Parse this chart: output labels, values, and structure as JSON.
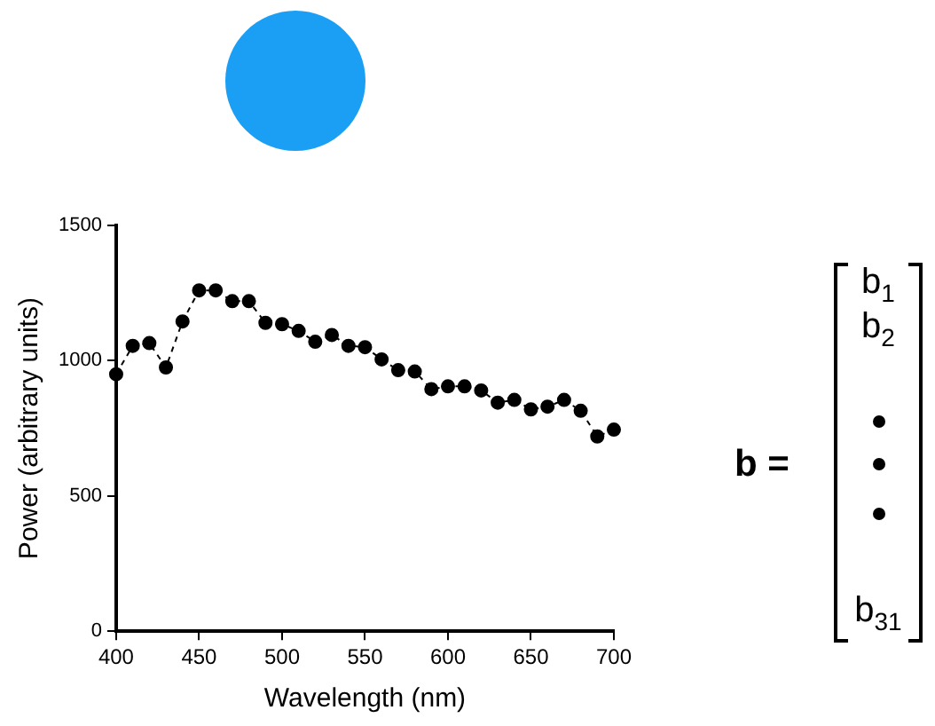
{
  "chart_data": {
    "type": "line",
    "xlabel": "Wavelength (nm)",
    "ylabel": "Power (arbitrary units)",
    "x": [
      400,
      410,
      420,
      430,
      440,
      450,
      460,
      470,
      480,
      490,
      500,
      510,
      520,
      530,
      540,
      550,
      560,
      570,
      580,
      590,
      600,
      610,
      620,
      630,
      640,
      650,
      660,
      670,
      680,
      690,
      700
    ],
    "series": [
      {
        "color": "#000000",
        "values": [
          950,
          1055,
          1065,
          975,
          1145,
          1260,
          1260,
          1220,
          1220,
          1140,
          1135,
          1110,
          1070,
          1095,
          1055,
          1050,
          1005,
          965,
          960,
          895,
          905,
          905,
          890,
          845,
          855,
          820,
          830,
          855,
          815,
          720,
          745
        ]
      }
    ],
    "xlim": [
      400,
      700
    ],
    "xticks": [
      400,
      450,
      500,
      550,
      600,
      650,
      700
    ],
    "ylim": [
      0,
      1500
    ],
    "yticks": [
      0,
      500,
      1000,
      1500
    ],
    "grid": false,
    "legend": false,
    "marker": "circle",
    "line_style": "dashed",
    "annotations": [
      "b =",
      "b$_{1}$",
      "b$_{2}$",
      "b$_{31}$"
    ]
  }
}
